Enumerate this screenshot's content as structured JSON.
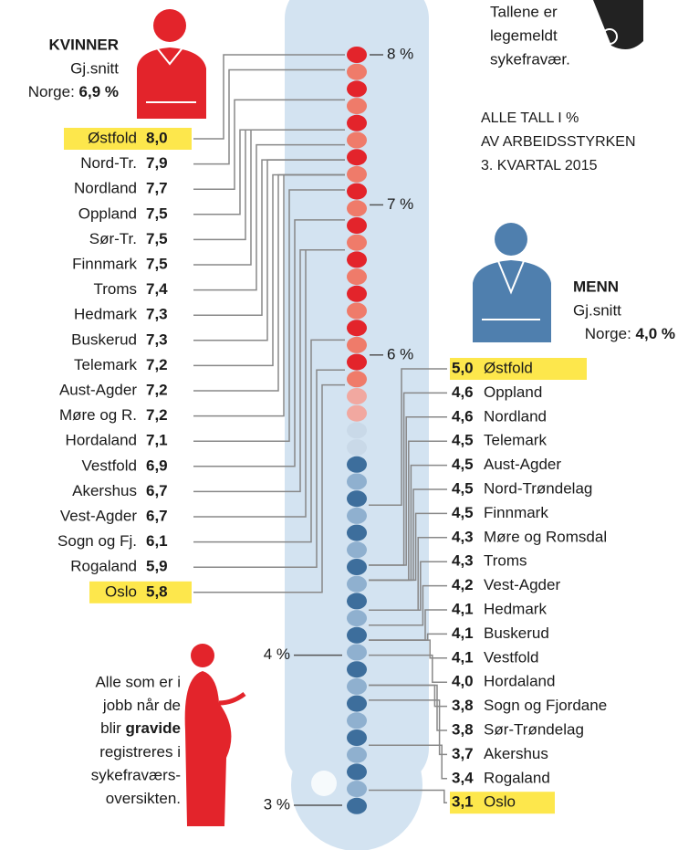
{
  "chart_data": {
    "type": "thermometer",
    "ylim": [
      3,
      8
    ],
    "yticks": [
      {
        "value": 8,
        "label": "8 %"
      },
      {
        "value": 7,
        "label": "7 %"
      },
      {
        "value": 6,
        "label": "6 %"
      },
      {
        "value": 4,
        "label": "4 %"
      },
      {
        "value": 3,
        "label": "3 %"
      }
    ],
    "women": {
      "title": "KVINNER",
      "average_caption": "Gj.snitt",
      "norge": "Norge: ",
      "average": "6,9 %",
      "color": "#e3242b",
      "categories": [
        "Østfold",
        "Nord-Tr.",
        "Nordland",
        "Oppland",
        "Sør-Tr.",
        "Finnmark",
        "Troms",
        "Hedmark",
        "Buskerud",
        "Telemark",
        "Aust-Agder",
        "Møre og R.",
        "Hordaland",
        "Vestfold",
        "Akershus",
        "Vest-Agder",
        "Sogn og Fj.",
        "Rogaland",
        "Oslo"
      ],
      "values": [
        8.0,
        7.9,
        7.7,
        7.5,
        7.5,
        7.5,
        7.4,
        7.3,
        7.3,
        7.2,
        7.2,
        7.2,
        7.1,
        6.9,
        6.7,
        6.7,
        6.1,
        5.9,
        5.8
      ],
      "value_labels": [
        "8,0",
        "7,9",
        "7,7",
        "7,5",
        "7,5",
        "7,5",
        "7,4",
        "7,3",
        "7,3",
        "7,2",
        "7,2",
        "7,2",
        "7,1",
        "6,9",
        "6,7",
        "6,7",
        "6,1",
        "5,9",
        "5,8"
      ]
    },
    "men": {
      "title": "MENN",
      "average_caption": "Gj.snitt",
      "norge": "Norge: ",
      "average": "4,0 %",
      "color": "#3d6e9c",
      "categories": [
        "Østfold",
        "Oppland",
        "Nordland",
        "Telemark",
        "Aust-Agder",
        "Nord-Trøndelag",
        "Finnmark",
        "Møre og Romsdal",
        "Troms",
        "Vest-Agder",
        "Hedmark",
        "Buskerud",
        "Vestfold",
        "Hordaland",
        "Sogn og Fjordane",
        "Sør-Trøndelag",
        "Akershus",
        "Rogaland",
        "Oslo"
      ],
      "values": [
        5.0,
        4.6,
        4.6,
        4.5,
        4.5,
        4.5,
        4.5,
        4.3,
        4.3,
        4.2,
        4.1,
        4.1,
        4.1,
        4.0,
        3.8,
        3.8,
        3.7,
        3.4,
        3.1
      ],
      "value_labels": [
        "5,0",
        "4,6",
        "4,6",
        "4,5",
        "4,5",
        "4,5",
        "4,5",
        "4,3",
        "4,3",
        "4,2",
        "4,1",
        "4,1",
        "4,1",
        "4,0",
        "3,8",
        "3,8",
        "3,7",
        "3,4",
        "3,1"
      ]
    },
    "note_top": [
      "Tallene er",
      "legemeldt",
      "sykefravær."
    ],
    "note_units": [
      "ALLE TALL I %",
      "AV ARBEIDSSTYRKEN",
      "3. KVARTAL 2015"
    ],
    "note_pregnant": [
      "Alle som er i",
      "jobb når de",
      [
        "blir ",
        "gravide"
      ],
      "registreres i",
      "sykefraværs-",
      "oversikten."
    ]
  }
}
